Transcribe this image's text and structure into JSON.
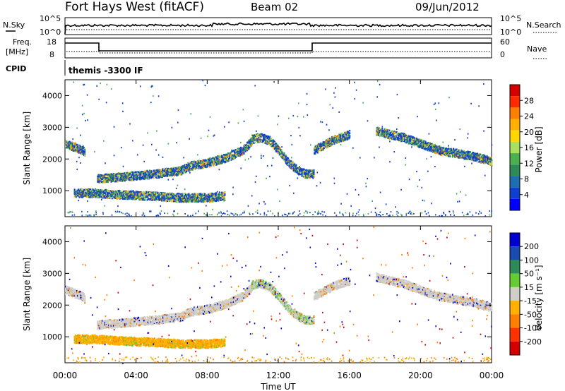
{
  "header": {
    "title": "Fort Hays West (fitACF)",
    "beam": "Beam 02",
    "date": "09/Jun/2012"
  },
  "top_panels": {
    "nsky_label": "N.Sky",
    "nsky_ticks": [
      "10^5",
      "10^0"
    ],
    "nsearch_label": "N.Search",
    "nsearch_ticks": [
      "10^5",
      "10^0"
    ],
    "freq_label_1": "Freq.",
    "freq_label_2": "[MHz]",
    "freq_ticks": [
      "18",
      "8"
    ],
    "nave_label": "Nave",
    "nave_ticks": [
      "60",
      "0"
    ],
    "cpid_label": "CPID",
    "cpid_value": "themis -3300 IF"
  },
  "colorbars": {
    "power_title": "Power [dB]",
    "power_ticks": [
      "28",
      "24",
      "20",
      "16",
      "12",
      "8",
      "4"
    ],
    "power_colors": [
      "#d40000",
      "#ff2a00",
      "#ff7f00",
      "#ffb000",
      "#ffd700",
      "#a8e060",
      "#4caf50",
      "#2e8b57",
      "#1e6fb0",
      "#1040d0",
      "#0000ff"
    ],
    "velocity_title": "Velocity [m s⁻¹]",
    "velocity_ticks": [
      "200",
      "100",
      "50",
      "15",
      "-15",
      "-50",
      "-100",
      "-200"
    ],
    "velocity_colors": [
      "#0000d0",
      "#1a4cb0",
      "#2e8b57",
      "#66cc33",
      "#cfcfc8",
      "#ffb000",
      "#ff7f00",
      "#ff3300",
      "#d40000"
    ]
  },
  "chart_data": [
    {
      "type": "heatmap",
      "name": "power",
      "ylabel": "Slant Range [km]",
      "xlabel": "Time UT",
      "x_ticks": [
        "00:00",
        "04:00",
        "08:00",
        "12:00",
        "16:00",
        "20:00",
        "00:00"
      ],
      "xlim_hours": [
        0,
        24
      ],
      "ylim_km": [
        180,
        4500
      ],
      "y_ticks": [
        1000,
        2000,
        3000,
        4000
      ],
      "echo_bands": [
        {
          "t": [
            0.0,
            1.0,
            1.1
          ],
          "r_start": [
            2500,
            2300,
            2200
          ],
          "r_end": [
            2500,
            2300,
            2200
          ]
        },
        {
          "t": [
            1.8,
            3.0,
            5.0,
            6.5,
            7.0,
            8.0,
            9.0,
            10.0,
            10.5
          ],
          "r": [
            1400,
            1450,
            1550,
            1650,
            1800,
            1900,
            2050,
            2300,
            2600
          ]
        },
        {
          "t": [
            10.5,
            11.0,
            11.5,
            12.0,
            12.5,
            13.0,
            13.5,
            14.0
          ],
          "r": [
            2650,
            2700,
            2600,
            2300,
            1950,
            1700,
            1550,
            1550
          ]
        },
        {
          "t": [
            14.0,
            15.0,
            16.0
          ],
          "r": [
            2300,
            2600,
            2800
          ]
        },
        {
          "t": [
            17.5,
            19.0,
            20.0,
            21.0,
            22.0,
            23.0,
            24.0
          ],
          "r": [
            2900,
            2700,
            2500,
            2300,
            2200,
            2100,
            1950
          ]
        },
        {
          "t": [
            0.5,
            1.5,
            3.0,
            5.0,
            6.5,
            8.0,
            9.0
          ],
          "r": [
            950,
            950,
            900,
            850,
            800,
            800,
            850
          ]
        }
      ]
    },
    {
      "type": "heatmap",
      "name": "velocity",
      "ylabel": "Slant Range [km]",
      "xlabel": "Time UT",
      "x_ticks": [
        "00:00",
        "04:00",
        "08:00",
        "12:00",
        "16:00",
        "20:00",
        "00:00"
      ],
      "xlim_hours": [
        0,
        24
      ],
      "ylim_km": [
        180,
        4500
      ],
      "y_ticks": [
        1000,
        2000,
        3000,
        4000
      ]
    }
  ]
}
